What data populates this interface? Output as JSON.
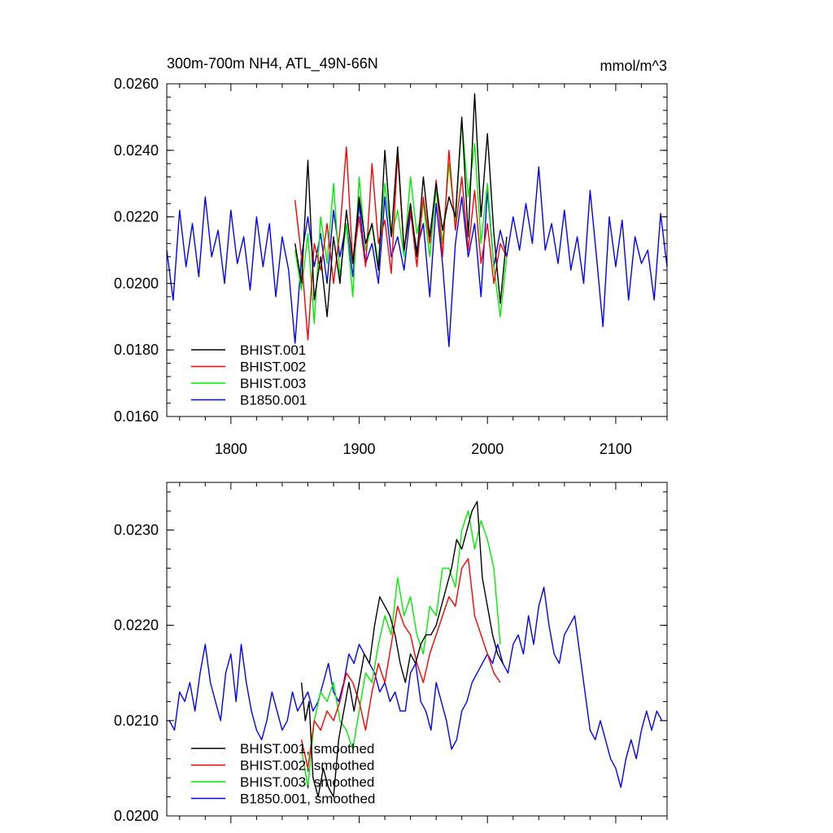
{
  "chart_data": [
    {
      "type": "line",
      "title": "300m-700m NH4, ATL_49N-66N",
      "units": "mmol/m^3",
      "xlim": [
        1750,
        2140
      ],
      "ylim": [
        0.016,
        0.026
      ],
      "x_ticks": [
        1800,
        1900,
        2000,
        2100
      ],
      "x_tick_labels": [
        "1800",
        "1900",
        "2000",
        "2100"
      ],
      "y_ticks": [
        0.016,
        0.018,
        0.02,
        0.022,
        0.024,
        0.026
      ],
      "y_tick_labels": [
        "0.0160",
        "0.0180",
        "0.0200",
        "0.0220",
        "0.0240",
        "0.0260"
      ],
      "legend_position": "bottom-left",
      "series": [
        {
          "name": "B1850.001",
          "color": "#0000ff",
          "x": [
            1750,
            1755,
            1760,
            1765,
            1770,
            1775,
            1780,
            1785,
            1790,
            1795,
            1800,
            1805,
            1810,
            1815,
            1820,
            1825,
            1830,
            1835,
            1840,
            1845,
            1850,
            1855,
            1860,
            1865,
            1870,
            1875,
            1880,
            1885,
            1890,
            1895,
            1900,
            1905,
            1910,
            1915,
            1920,
            1925,
            1930,
            1935,
            1940,
            1945,
            1950,
            1955,
            1960,
            1965,
            1970,
            1975,
            1980,
            1985,
            1990,
            1995,
            2000,
            2005,
            2010,
            2015,
            2020,
            2025,
            2030,
            2035,
            2040,
            2045,
            2050,
            2055,
            2060,
            2065,
            2070,
            2075,
            2080,
            2085,
            2090,
            2095,
            2100,
            2105,
            2110,
            2115,
            2120,
            2125,
            2130,
            2135,
            2140
          ],
          "y": [
            0.021,
            0.0195,
            0.0222,
            0.0205,
            0.0218,
            0.0202,
            0.0226,
            0.0208,
            0.0216,
            0.02,
            0.0222,
            0.0206,
            0.0214,
            0.0198,
            0.022,
            0.0205,
            0.0218,
            0.0196,
            0.0214,
            0.0204,
            0.0182,
            0.0208,
            0.022,
            0.0205,
            0.0215,
            0.02,
            0.0222,
            0.0208,
            0.0218,
            0.0202,
            0.0224,
            0.0206,
            0.0212,
            0.02,
            0.0226,
            0.0208,
            0.0214,
            0.0204,
            0.0221,
            0.021,
            0.0218,
            0.0196,
            0.0224,
            0.0206,
            0.0181,
            0.0212,
            0.0226,
            0.0208,
            0.0218,
            0.0196,
            0.0228,
            0.0205,
            0.0216,
            0.0208,
            0.022,
            0.021,
            0.0224,
            0.0212,
            0.0235,
            0.021,
            0.0218,
            0.0206,
            0.0222,
            0.0204,
            0.0214,
            0.02,
            0.0228,
            0.0208,
            0.0187,
            0.022,
            0.0205,
            0.0219,
            0.0195,
            0.0214,
            0.0206,
            0.021,
            0.0195,
            0.0221,
            0.0205
          ]
        },
        {
          "name": "BHIST.003",
          "color": "#00ee00",
          "x": [
            1850,
            1855,
            1860,
            1865,
            1870,
            1875,
            1880,
            1885,
            1890,
            1895,
            1900,
            1905,
            1910,
            1915,
            1920,
            1925,
            1930,
            1935,
            1940,
            1945,
            1950,
            1955,
            1960,
            1965,
            1970,
            1975,
            1980,
            1985,
            1990,
            1995,
            2000,
            2005,
            2010,
            2015
          ],
          "y": [
            0.021,
            0.0198,
            0.0215,
            0.0188,
            0.022,
            0.0206,
            0.023,
            0.0202,
            0.0218,
            0.0196,
            0.0232,
            0.021,
            0.0218,
            0.0206,
            0.023,
            0.0214,
            0.0222,
            0.0208,
            0.0232,
            0.0215,
            0.0224,
            0.0208,
            0.0228,
            0.0212,
            0.0236,
            0.0218,
            0.0249,
            0.0226,
            0.0242,
            0.0212,
            0.023,
            0.0205,
            0.019,
            0.0208
          ]
        },
        {
          "name": "BHIST.002",
          "color": "#ff0000",
          "x": [
            1850,
            1855,
            1860,
            1865,
            1870,
            1875,
            1880,
            1885,
            1890,
            1895,
            1900,
            1905,
            1910,
            1915,
            1920,
            1925,
            1930,
            1935,
            1940,
            1945,
            1950,
            1955,
            1960,
            1965,
            1970,
            1975,
            1980,
            1985,
            1990,
            1995,
            2000,
            2005,
            2010,
            2015
          ],
          "y": [
            0.0225,
            0.0208,
            0.0183,
            0.0212,
            0.0204,
            0.0218,
            0.02,
            0.0216,
            0.0241,
            0.0206,
            0.022,
            0.0205,
            0.0236,
            0.0212,
            0.0219,
            0.0203,
            0.0239,
            0.021,
            0.0222,
            0.0205,
            0.0226,
            0.0212,
            0.0231,
            0.0208,
            0.024,
            0.0216,
            0.0232,
            0.021,
            0.0228,
            0.0206,
            0.0218,
            0.02,
            0.0212,
            0.0208
          ]
        },
        {
          "name": "BHIST.001",
          "color": "#000000",
          "x": [
            1850,
            1855,
            1860,
            1865,
            1870,
            1875,
            1880,
            1885,
            1890,
            1895,
            1900,
            1905,
            1910,
            1915,
            1920,
            1925,
            1930,
            1935,
            1940,
            1945,
            1950,
            1955,
            1960,
            1965,
            1970,
            1975,
            1980,
            1985,
            1990,
            1995,
            2000,
            2005,
            2010,
            2015
          ],
          "y": [
            0.0212,
            0.02,
            0.0237,
            0.0195,
            0.0208,
            0.019,
            0.0214,
            0.02,
            0.0222,
            0.0206,
            0.0226,
            0.0212,
            0.0218,
            0.0204,
            0.024,
            0.0214,
            0.0241,
            0.021,
            0.0224,
            0.0208,
            0.0232,
            0.0214,
            0.023,
            0.0216,
            0.0226,
            0.022,
            0.025,
            0.0214,
            0.0257,
            0.022,
            0.0245,
            0.0215,
            0.0194,
            0.0214
          ]
        }
      ]
    },
    {
      "type": "line",
      "xlim": [
        1750,
        2140
      ],
      "ylim": [
        0.02,
        0.0235
      ],
      "x_ticks": [
        1800,
        1900,
        2000,
        2100
      ],
      "y_ticks": [
        0.02,
        0.021,
        0.022,
        0.023
      ],
      "y_tick_labels": [
        "0.0200",
        "0.0210",
        "0.0220",
        "0.0230"
      ],
      "legend_position": "bottom-left",
      "series": [
        {
          "name": "B1850.001, smoothed",
          "color": "#0000ff",
          "x": [
            1752,
            1756,
            1760,
            1764,
            1768,
            1772,
            1776,
            1780,
            1784,
            1788,
            1792,
            1796,
            1800,
            1804,
            1808,
            1812,
            1816,
            1820,
            1824,
            1828,
            1832,
            1836,
            1840,
            1844,
            1848,
            1852,
            1856,
            1860,
            1864,
            1868,
            1872,
            1876,
            1880,
            1884,
            1888,
            1892,
            1896,
            1900,
            1904,
            1908,
            1912,
            1916,
            1920,
            1924,
            1928,
            1932,
            1936,
            1940,
            1944,
            1948,
            1952,
            1956,
            1960,
            1964,
            1968,
            1972,
            1976,
            1980,
            1984,
            1988,
            1992,
            1996,
            2000,
            2004,
            2008,
            2012,
            2016,
            2020,
            2024,
            2028,
            2032,
            2036,
            2040,
            2044,
            2048,
            2052,
            2056,
            2060,
            2064,
            2068,
            2072,
            2076,
            2080,
            2084,
            2088,
            2092,
            2096,
            2100,
            2104,
            2108,
            2112,
            2116,
            2120,
            2124,
            2128,
            2132,
            2136
          ],
          "y": [
            0.021,
            0.0209,
            0.0213,
            0.0212,
            0.0214,
            0.0211,
            0.0215,
            0.0218,
            0.0214,
            0.0212,
            0.021,
            0.0215,
            0.0217,
            0.0212,
            0.0218,
            0.0214,
            0.0211,
            0.0209,
            0.0208,
            0.021,
            0.0213,
            0.0211,
            0.0209,
            0.021,
            0.0213,
            0.0211,
            0.0212,
            0.0213,
            0.0211,
            0.0212,
            0.0214,
            0.0216,
            0.0213,
            0.0212,
            0.0214,
            0.0217,
            0.0216,
            0.0218,
            0.0217,
            0.0216,
            0.0215,
            0.0213,
            0.0214,
            0.0212,
            0.0213,
            0.0211,
            0.0211,
            0.0215,
            0.0216,
            0.0212,
            0.0211,
            0.0209,
            0.0214,
            0.0212,
            0.021,
            0.0207,
            0.0208,
            0.0211,
            0.0212,
            0.0214,
            0.0215,
            0.0216,
            0.0217,
            0.0216,
            0.0218,
            0.0216,
            0.0215,
            0.0218,
            0.0219,
            0.0217,
            0.0221,
            0.0218,
            0.0222,
            0.0224,
            0.022,
            0.0217,
            0.0216,
            0.0219,
            0.022,
            0.0221,
            0.0217,
            0.0213,
            0.0209,
            0.0208,
            0.021,
            0.0208,
            0.0206,
            0.0205,
            0.0203,
            0.0206,
            0.0208,
            0.0206,
            0.0209,
            0.0211,
            0.0209,
            0.0211,
            0.021
          ]
        },
        {
          "name": "BHIST.003, smoothed",
          "color": "#00ee00",
          "x": [
            1855,
            1860,
            1865,
            1870,
            1875,
            1880,
            1885,
            1890,
            1895,
            1900,
            1905,
            1910,
            1915,
            1920,
            1925,
            1930,
            1935,
            1940,
            1945,
            1950,
            1955,
            1960,
            1965,
            1970,
            1975,
            1980,
            1985,
            1990,
            1995,
            2000,
            2005,
            2010
          ],
          "y": [
            0.0207,
            0.0203,
            0.021,
            0.0213,
            0.0212,
            0.0214,
            0.021,
            0.0209,
            0.0207,
            0.0211,
            0.0215,
            0.0214,
            0.0218,
            0.0221,
            0.0219,
            0.0225,
            0.0221,
            0.0223,
            0.0219,
            0.0217,
            0.0222,
            0.0221,
            0.0226,
            0.0226,
            0.0224,
            0.023,
            0.0232,
            0.0228,
            0.0231,
            0.0229,
            0.0226,
            0.0218
          ]
        },
        {
          "name": "BHIST.002, smoothed",
          "color": "#ff0000",
          "x": [
            1855,
            1860,
            1865,
            1870,
            1875,
            1880,
            1885,
            1890,
            1895,
            1900,
            1905,
            1910,
            1915,
            1920,
            1925,
            1930,
            1935,
            1940,
            1945,
            1950,
            1955,
            1960,
            1965,
            1970,
            1975,
            1980,
            1985,
            1990,
            1995,
            2000,
            2005,
            2010
          ],
          "y": [
            0.0208,
            0.0205,
            0.021,
            0.0209,
            0.0211,
            0.021,
            0.0212,
            0.0215,
            0.0214,
            0.0212,
            0.0209,
            0.0213,
            0.0216,
            0.0214,
            0.0218,
            0.0222,
            0.022,
            0.0219,
            0.0216,
            0.0214,
            0.0217,
            0.0219,
            0.0221,
            0.0223,
            0.0222,
            0.0226,
            0.0227,
            0.0221,
            0.0219,
            0.0217,
            0.0215,
            0.0214
          ]
        },
        {
          "name": "BHIST.001, smoothed",
          "color": "#000000",
          "x": [
            1855,
            1858,
            1861,
            1864,
            1868,
            1872,
            1876,
            1880,
            1884,
            1888,
            1892,
            1896,
            1900,
            1904,
            1908,
            1912,
            1916,
            1920,
            1924,
            1928,
            1932,
            1936,
            1940,
            1944,
            1948,
            1952,
            1956,
            1960,
            1964,
            1968,
            1972,
            1976,
            1980,
            1984,
            1988,
            1992,
            1996,
            2000,
            2004,
            2008,
            2012
          ],
          "y": [
            0.0214,
            0.021,
            0.0212,
            0.0204,
            0.0202,
            0.0205,
            0.0203,
            0.0202,
            0.0208,
            0.0211,
            0.0214,
            0.0211,
            0.0214,
            0.0217,
            0.0216,
            0.022,
            0.0223,
            0.0222,
            0.0221,
            0.0219,
            0.0216,
            0.0214,
            0.0217,
            0.0216,
            0.0218,
            0.0219,
            0.0219,
            0.022,
            0.0222,
            0.0224,
            0.0226,
            0.0229,
            0.0228,
            0.023,
            0.0232,
            0.0233,
            0.0225,
            0.0222,
            0.0219,
            0.0217,
            0.0216
          ]
        }
      ]
    }
  ]
}
